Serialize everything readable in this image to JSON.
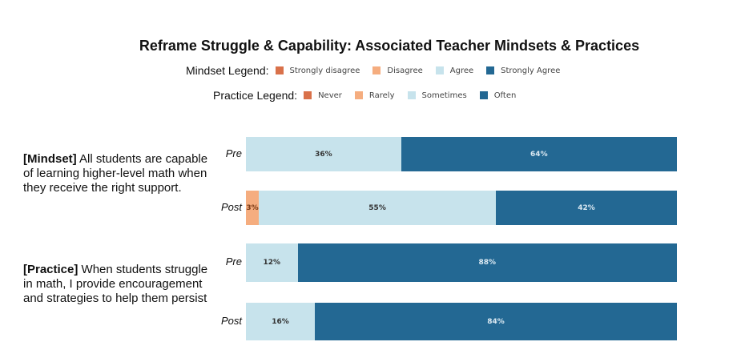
{
  "title": "Reframe Struggle & Capability: Associated Teacher Mindsets & Practices",
  "colors": {
    "strongly_disagree": "#d9714a",
    "disagree": "#f5ad7f",
    "agree": "#c7e3ec",
    "strongly_agree": "#236893"
  },
  "mindset_legend": {
    "label": "Mindset Legend:",
    "items": [
      "Strongly disagree",
      "Disagree",
      "Agree",
      "Strongly Agree"
    ]
  },
  "practice_legend": {
    "label": "Practice Legend:",
    "items": [
      "Never",
      "Rarely",
      "Sometimes",
      "Often"
    ]
  },
  "chart_data": {
    "type": "bar",
    "orientation": "horizontal-stacked-100",
    "title": "Reframe Struggle & Capability: Associated Teacher Mindsets & Practices",
    "groups": [
      {
        "bold": "[Mindset]",
        "text": " All students are capable of learning higher-level math when they receive the right support.",
        "rows": [
          {
            "label": "Pre",
            "values": [
              0,
              0,
              36,
              64
            ],
            "labels": [
              "",
              "",
              "36%",
              "64%"
            ]
          },
          {
            "label": "Post",
            "values": [
              0,
              3,
              55,
              42
            ],
            "labels": [
              "",
              "3%",
              "55%",
              "42%"
            ]
          }
        ]
      },
      {
        "bold": "[Practice]",
        "text": " When students struggle in math, I provide encouragement and strategies to help them persist",
        "rows": [
          {
            "label": "Pre",
            "values": [
              0,
              0,
              12,
              88
            ],
            "labels": [
              "",
              "",
              "12%",
              "88%"
            ]
          },
          {
            "label": "Post",
            "values": [
              0,
              0,
              16,
              84
            ],
            "labels": [
              "",
              "",
              "16%",
              "84%"
            ]
          }
        ]
      }
    ],
    "xlim": [
      0,
      100
    ]
  }
}
